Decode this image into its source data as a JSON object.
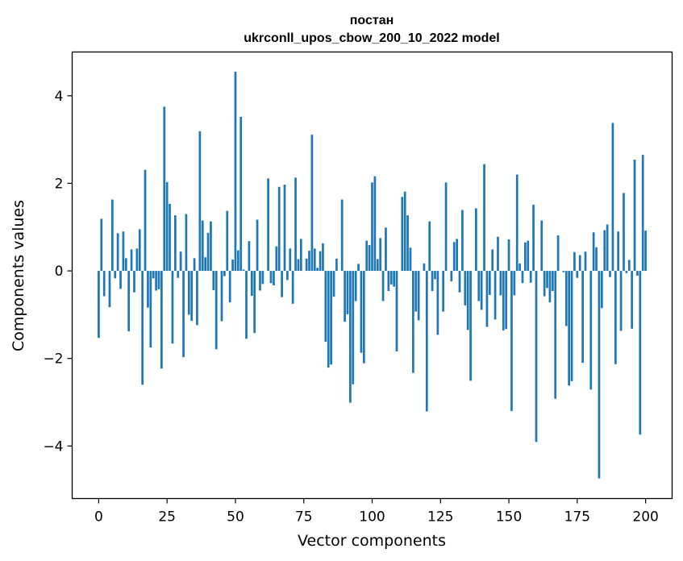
{
  "chart_data": {
    "type": "bar",
    "title_line1": "постан",
    "title_line2": "ukrconll_upos_cbow_200_10_2022 model",
    "xlabel": "Vector components",
    "ylabel": "Components values",
    "xlim": [
      -9.7,
      209.7
    ],
    "ylim": [
      -5.2,
      5.0
    ],
    "xticks": [
      0,
      25,
      50,
      75,
      100,
      125,
      150,
      175,
      200
    ],
    "yticks": [
      -4,
      -2,
      0,
      2,
      4
    ],
    "ytick_labels": [
      "−4",
      "−2",
      "0",
      "2",
      "4"
    ],
    "bar_color": "#1f77b4",
    "values": [
      -1.53,
      1.19,
      -0.58,
      0.0,
      -0.83,
      1.63,
      -0.17,
      0.86,
      -0.41,
      0.9,
      0.29,
      -1.38,
      0.49,
      -0.49,
      0.51,
      0.95,
      -2.6,
      2.31,
      -0.84,
      -1.75,
      -0.17,
      -0.45,
      -0.42,
      -2.23,
      3.75,
      2.03,
      1.53,
      -1.66,
      1.27,
      -0.16,
      0.44,
      -1.97,
      1.3,
      -1.0,
      -1.14,
      0.29,
      -1.24,
      3.19,
      1.15,
      0.31,
      0.87,
      1.13,
      -0.44,
      -1.79,
      0.0,
      -1.15,
      -0.12,
      1.37,
      -0.72,
      0.26,
      4.55,
      0.47,
      3.52,
      0.03,
      -1.55,
      0.68,
      -0.57,
      -1.42,
      1.17,
      -0.45,
      -0.3,
      0.0,
      2.11,
      -0.28,
      -0.33,
      0.56,
      1.92,
      -0.6,
      1.97,
      -0.21,
      0.51,
      -0.75,
      2.13,
      0.27,
      0.73,
      0.0,
      0.28,
      0.46,
      3.11,
      0.51,
      0.07,
      0.45,
      0.63,
      -1.62,
      -2.21,
      -2.14,
      -0.59,
      0.28,
      0.0,
      1.63,
      -1.16,
      -0.99,
      -3.01,
      -2.59,
      -0.69,
      0.16,
      -1.87,
      -2.11,
      0.69,
      0.59,
      2.02,
      2.16,
      0.27,
      0.75,
      -0.69,
      0.99,
      -0.46,
      -0.31,
      -0.36,
      -1.84,
      0.0,
      1.69,
      1.81,
      1.27,
      0.53,
      -2.33,
      -0.93,
      -1.13,
      0.0,
      0.17,
      -3.21,
      1.13,
      -0.46,
      -0.19,
      -1.46,
      0.0,
      -0.93,
      2.02,
      0.0,
      -0.24,
      0.66,
      0.73,
      -0.49,
      1.39,
      -0.79,
      -1.35,
      -2.51,
      0.0,
      1.43,
      -0.69,
      -0.89,
      2.44,
      -1.28,
      -0.55,
      0.49,
      -1.11,
      0.78,
      -0.56,
      -1.36,
      -1.33,
      0.72,
      -3.2,
      -0.56,
      2.2,
      0.17,
      -0.28,
      0.65,
      0.69,
      -0.27,
      1.51,
      -3.91,
      0.0,
      1.15,
      -0.58,
      -0.39,
      -0.72,
      -0.46,
      -2.92,
      0.81,
      0.0,
      -0.03,
      -1.26,
      -2.62,
      -2.52,
      0.43,
      -0.16,
      0.36,
      -2.1,
      0.44,
      0.0,
      -2.71,
      0.88,
      0.54,
      -4.74,
      -0.85,
      0.93,
      1.06,
      -0.14,
      3.38,
      -2.13,
      0.9,
      -1.37,
      1.78,
      -0.05,
      0.25,
      -1.32,
      2.54,
      -0.11,
      -3.74,
      2.65,
      0.92
    ]
  }
}
